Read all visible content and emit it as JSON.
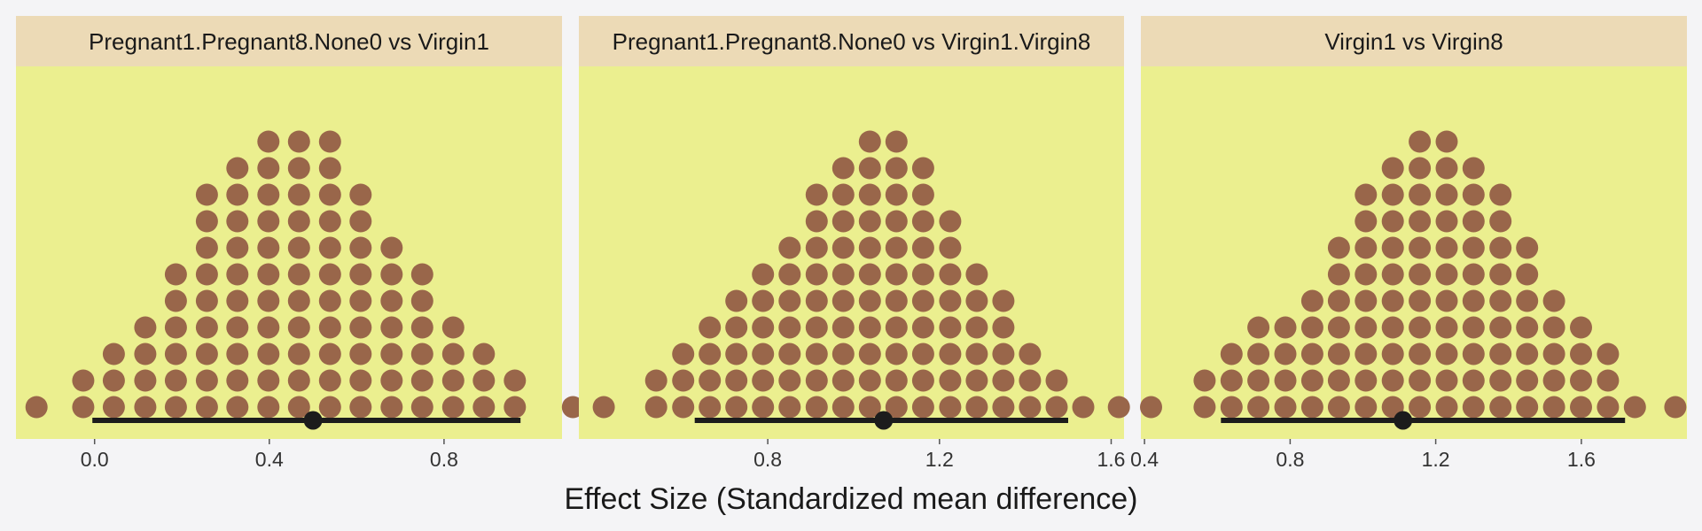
{
  "chart_data": {
    "type": "dotplot",
    "xlabel": "Effect Size (Standardized mean difference)",
    "ylabel": "",
    "colors": {
      "page_background": "#f4f4f6",
      "panel_background": "#ebef8f",
      "strip_background": "#ecdab6",
      "dot_fill": "#99664a",
      "interval_color": "#1c1c1c"
    },
    "panels": [
      {
        "title": "Pregnant1.Pregnant8.None0 vs Virgin1",
        "xlim": [
          -0.18,
          1.07
        ],
        "ticks": [
          0.0,
          0.4,
          0.8
        ],
        "tick_labels": [
          "0.0",
          "0.4",
          "0.8"
        ],
        "bins_x": [
          -0.133,
          -0.026,
          0.044,
          0.116,
          0.186,
          0.257,
          0.327,
          0.398,
          0.468,
          0.539,
          0.609,
          0.68,
          0.75,
          0.821,
          0.891,
          0.962,
          1.095
        ],
        "bins_count": [
          1,
          2,
          3,
          4,
          6,
          9,
          10,
          11,
          11,
          11,
          9,
          7,
          6,
          4,
          3,
          2,
          1
        ],
        "point_estimate": 0.5,
        "interval": [
          -0.005,
          0.975
        ]
      },
      {
        "title": "Pregnant1.Pregnant8.None0 vs Virgin1.Virgin8",
        "xlim": [
          0.36,
          1.63
        ],
        "ticks": [
          0.8,
          1.2,
          1.6
        ],
        "tick_labels": [
          "0.8",
          "1.2",
          "1.6"
        ],
        "bins_x": [
          0.418,
          0.54,
          0.603,
          0.665,
          0.727,
          0.789,
          0.851,
          0.914,
          0.976,
          1.038,
          1.1,
          1.162,
          1.225,
          1.287,
          1.349,
          1.411,
          1.473,
          1.535,
          1.618
        ],
        "bins_count": [
          1,
          2,
          3,
          4,
          5,
          6,
          7,
          9,
          10,
          11,
          11,
          10,
          8,
          6,
          5,
          3,
          2,
          1,
          1
        ],
        "point_estimate": 1.07,
        "interval": [
          0.63,
          1.5
        ]
      },
      {
        "title": "Virgin1 vs Virgin8",
        "xlim": [
          0.39,
          1.89
        ],
        "ticks": [
          0.4,
          0.8,
          1.2,
          1.6
        ],
        "tick_labels": [
          "0.4",
          "0.8",
          "1.2",
          "1.6"
        ],
        "bins_x": [
          0.418,
          0.565,
          0.639,
          0.713,
          0.787,
          0.861,
          0.934,
          1.008,
          1.082,
          1.156,
          1.23,
          1.304,
          1.378,
          1.451,
          1.525,
          1.599,
          1.673,
          1.747,
          1.858
        ],
        "bins_count": [
          1,
          2,
          3,
          4,
          4,
          5,
          7,
          9,
          10,
          11,
          11,
          10,
          9,
          7,
          5,
          4,
          3,
          1,
          1
        ],
        "point_estimate": 1.11,
        "interval": [
          0.61,
          1.72
        ]
      }
    ]
  }
}
